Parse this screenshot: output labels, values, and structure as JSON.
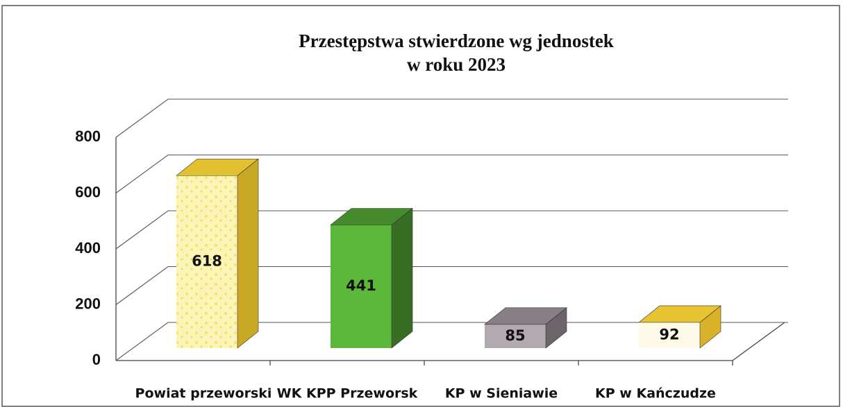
{
  "chart_data": {
    "type": "bar3d",
    "title": [
      "Przestępstwa stwierdzone wg jednostek",
      "w roku 2023"
    ],
    "categories": [
      "Powiat przeworski",
      "WK KPP Przeworsk",
      "KP w Sieniawie",
      "KP w Kańczudze"
    ],
    "values": [
      618,
      441,
      85,
      92
    ],
    "colors": [
      "#fbf3b8",
      "#5cb83a",
      "#b3a9b1",
      "#fdfbe8"
    ],
    "ylim": [
      0,
      800
    ],
    "yticks": [
      0,
      200,
      400,
      600,
      800
    ],
    "grid": true
  }
}
